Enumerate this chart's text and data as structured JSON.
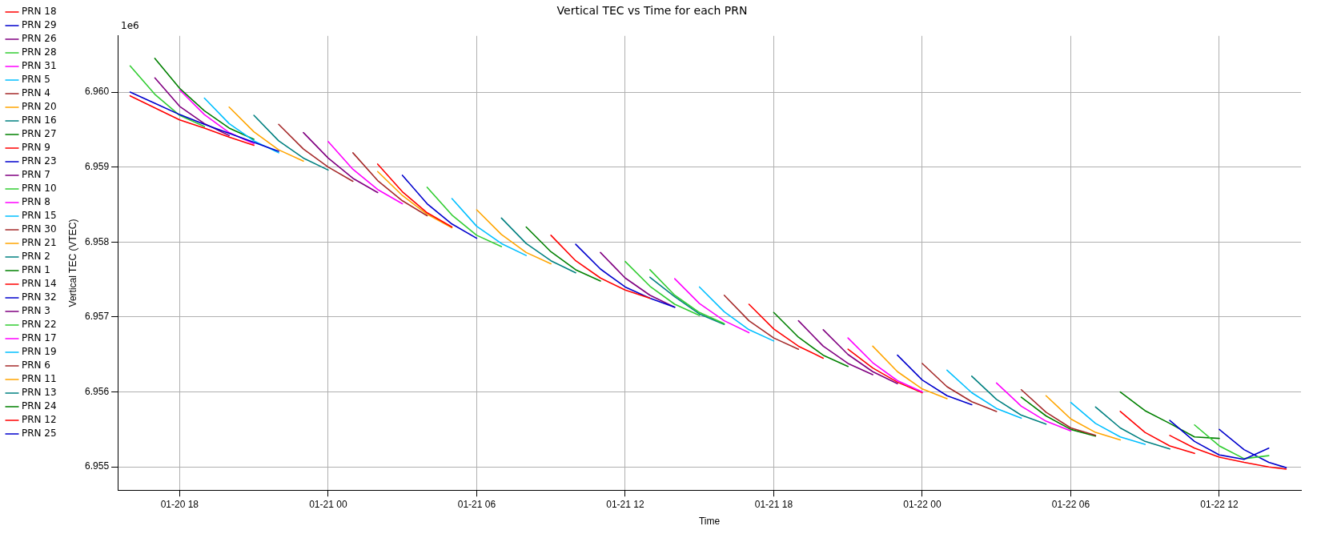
{
  "chart_data": {
    "type": "line",
    "title": "Vertical TEC vs Time for each PRN",
    "xlabel": "Time",
    "ylabel": "Vertical TEC (VTEC)",
    "annotations": [
      "1e6"
    ],
    "xlim": [
      "--01-20T15:30",
      "--01-22T15:18"
    ],
    "xticks": [
      {
        "value": "--01-20T18:00",
        "label": "01-20 18"
      },
      {
        "value": "--01-21T00:00",
        "label": "01-21 00"
      },
      {
        "value": "--01-21T06:00",
        "label": "01-21 06"
      },
      {
        "value": "--01-21T12:00",
        "label": "01-21 12"
      },
      {
        "value": "--01-21T18:00",
        "label": "01-21 18"
      },
      {
        "value": "--01-22T00:00",
        "label": "01-22 00"
      },
      {
        "value": "--01-22T06:00",
        "label": "01-22 06"
      },
      {
        "value": "--01-22T12:00",
        "label": "01-22 12"
      }
    ],
    "ylim": [
      6.95469,
      6.96075
    ],
    "yticks": [
      6.955,
      6.956,
      6.957,
      6.958,
      6.959,
      {
        "value": 6.96,
        "label": "6.960"
      }
    ],
    "grid": true,
    "legend": "top left",
    "marker": "none",
    "line_style": "solid",
    "series": [
      {
        "name": "PRN 18",
        "color": "#ff0000",
        "x": [
          "--01-20T16:00",
          "--01-20T17:00",
          "--01-20T18:00",
          "--01-20T19:00",
          "--01-20T20:00",
          "--01-20T21:00",
          "--01-20T21:30",
          "--01-21T17:00",
          "--01-21T18:00",
          "--01-21T19:00",
          "--01-21T20:00",
          "--01-21T20:30",
          "--01-22T10:00",
          "--01-22T11:00",
          "--01-22T12:00",
          "--01-22T13:00",
          "--01-22T14:00",
          "--01-22T14:42"
        ],
        "values": [
          6.95995,
          6.95979,
          6.95963,
          6.95952,
          6.9594,
          6.95929,
          null,
          6.95717,
          6.95684,
          6.95661,
          6.95645,
          null,
          6.95542,
          6.95525,
          6.95513,
          6.95506,
          6.955,
          6.95497
        ]
      },
      {
        "name": "PRN 29",
        "color": "#0000cd",
        "x": [
          "--01-20T16:00",
          "--01-20T17:00",
          "--01-20T18:00",
          "--01-20T19:00",
          "--01-20T20:00",
          "--01-20T21:00",
          "--01-20T22:00",
          "--01-21T06:00",
          "--01-21T23:00",
          "--01-22T00:00",
          "--01-22T01:00",
          "--01-22T02:00"
        ],
        "values": [
          6.96,
          6.95985,
          6.9597,
          6.95957,
          6.95945,
          6.95933,
          6.95921,
          null,
          6.95649,
          6.95616,
          6.95595,
          6.95583
        ]
      },
      {
        "name": "PRN 26",
        "color": "#800080",
        "x": [
          "--01-20T17:00",
          "--01-20T18:00",
          "--01-20T19:00",
          "--01-20T20:00",
          "--01-21T06:00",
          "--01-21T19:00",
          "--01-21T20:00",
          "--01-21T21:00",
          "--01-21T22:00"
        ],
        "values": [
          6.96019,
          6.95981,
          6.95958,
          6.95942,
          null,
          6.95695,
          6.95661,
          6.95638,
          6.95623
        ]
      },
      {
        "name": "PRN 28",
        "color": "#32cd32",
        "x": [
          "--01-20T16:00",
          "--01-20T17:00",
          "--01-20T18:00",
          "--01-20T19:00",
          "--01-21T06:00",
          "--01-21T13:00",
          "--01-21T14:00",
          "--01-21T15:00",
          "--01-21T16:00"
        ],
        "values": [
          6.96035,
          6.95997,
          6.95969,
          6.95954,
          null,
          6.95763,
          6.95729,
          6.95706,
          6.95691
        ]
      },
      {
        "name": "PRN 31",
        "color": "#ff00ff",
        "x": [
          "--01-20T18:00",
          "--01-20T19:00",
          "--01-20T20:00",
          "--01-20T21:00",
          "--01-21T06:00",
          "--01-21T21:00",
          "--01-21T22:00",
          "--01-21T23:00",
          "--01-22T00:00"
        ],
        "values": [
          6.96003,
          6.9597,
          6.95946,
          6.95931,
          null,
          6.95672,
          6.95639,
          6.95615,
          6.956
        ]
      },
      {
        "name": "PRN 5",
        "color": "#00bfff",
        "x": [
          "--01-20T19:00",
          "--01-20T20:00",
          "--01-20T21:00",
          "--01-20T22:00",
          "--01-21T06:00",
          "--01-22T01:00",
          "--01-22T02:00",
          "--01-22T03:00",
          "--01-22T04:00"
        ],
        "values": [
          6.95992,
          6.95958,
          6.95935,
          6.95919,
          null,
          6.95629,
          6.95599,
          6.95578,
          6.95565
        ]
      },
      {
        "name": "PRN 4",
        "color": "#a52a2a",
        "x": [
          "--01-20T22:00",
          "--01-20T23:00",
          "--01-21T00:00",
          "--01-21T01:00",
          "--01-21T06:00",
          "--01-22T04:00",
          "--01-22T05:00",
          "--01-22T06:00",
          "--01-22T07:00"
        ],
        "values": [
          6.95957,
          6.95924,
          6.959,
          6.95881,
          null,
          6.95603,
          6.95573,
          6.95552,
          6.95542
        ]
      },
      {
        "name": "PRN 20",
        "color": "#ffa500",
        "x": [
          "--01-20T20:00",
          "--01-20T21:00",
          "--01-20T22:00",
          "--01-20T23:00",
          "--01-21T06:00",
          "--01-21T22:00",
          "--01-21T23:00",
          "--01-22T00:00",
          "--01-22T01:00"
        ],
        "values": [
          6.9598,
          6.95947,
          6.95923,
          6.95908,
          null,
          6.95661,
          6.95627,
          6.95604,
          6.95591
        ]
      },
      {
        "name": "PRN 16",
        "color": "#008080",
        "x": [
          "--01-20T21:00",
          "--01-20T22:00",
          "--01-20T23:00",
          "--01-21T00:00",
          "--01-21T06:00",
          "--01-22T02:00",
          "--01-22T03:00",
          "--01-22T04:00",
          "--01-22T05:00"
        ],
        "values": [
          6.95969,
          6.95935,
          6.95912,
          6.95896,
          null,
          6.95621,
          6.9559,
          6.95569,
          6.95557
        ]
      },
      {
        "name": "PRN 27",
        "color": "#008000",
        "x": [
          "--01-20T17:00",
          "--01-20T18:00",
          "--01-20T19:00",
          "--01-20T20:00",
          "--01-20T21:00",
          "--01-21T06:00",
          "--01-21T18:00",
          "--01-21T19:00",
          "--01-21T20:00",
          "--01-21T21:00"
        ],
        "values": [
          6.96045,
          6.96005,
          6.95975,
          6.95952,
          6.95937,
          null,
          6.95706,
          6.95673,
          6.95649,
          6.95634
        ]
      },
      {
        "name": "PRN 9",
        "color": "#ff0000",
        "x": [
          "--01-21T02:00",
          "--01-21T03:00",
          "--01-21T04:00",
          "--01-21T05:00",
          "--01-21T16:00",
          "--01-22T08:00",
          "--01-22T09:00",
          "--01-22T10:00",
          "--01-22T11:00"
        ],
        "values": [
          6.95904,
          6.95867,
          6.95839,
          6.9582,
          null,
          6.95574,
          6.95546,
          6.95528,
          6.95518
        ]
      },
      {
        "name": "PRN 23",
        "color": "#0000cd",
        "x": [
          "--01-21T03:00",
          "--01-21T04:00",
          "--01-21T05:00",
          "--01-21T06:00",
          "--01-21T16:00",
          "--01-22T10:00",
          "--01-22T11:00",
          "--01-22T12:00",
          "--01-22T13:00",
          "--01-22T14:00"
        ],
        "values": [
          6.95889,
          6.95851,
          6.95824,
          6.95805,
          null,
          6.95562,
          6.95534,
          6.95516,
          6.9551,
          6.95525
        ]
      },
      {
        "name": "PRN 7",
        "color": "#800080",
        "x": [
          "--01-20T23:00",
          "--01-21T00:00",
          "--01-21T01:00",
          "--01-21T02:00",
          "--01-21T11:00",
          "--01-21T20:00",
          "--01-21T21:00",
          "--01-21T22:00",
          "--01-21T23:00"
        ],
        "values": [
          6.95946,
          6.95912,
          6.95885,
          6.95866,
          null,
          6.95683,
          6.9565,
          6.95627,
          6.95611
        ]
      },
      {
        "name": "PRN 10",
        "color": "#32cd32",
        "x": [
          "--01-21T04:00",
          "--01-21T05:00",
          "--01-21T06:00",
          "--01-21T07:00",
          "--01-21T16:00",
          "--01-22T11:00",
          "--01-22T12:00",
          "--01-22T13:00",
          "--01-22T14:00"
        ],
        "values": [
          6.95873,
          6.95836,
          6.95809,
          6.95794,
          null,
          6.95556,
          6.95528,
          6.95511,
          6.95515
        ]
      },
      {
        "name": "PRN 8",
        "color": "#ff00ff",
        "x": [
          "--01-21T00:00",
          "--01-21T01:00",
          "--01-21T02:00",
          "--01-21T03:00",
          "--01-21T16:00",
          "--01-22T03:00",
          "--01-22T04:00",
          "--01-22T05:00",
          "--01-22T06:00"
        ],
        "values": [
          6.95934,
          6.95897,
          6.9587,
          6.95851,
          null,
          6.95612,
          6.95581,
          6.95561,
          6.95548
        ]
      },
      {
        "name": "PRN 15",
        "color": "#00bfff",
        "x": [
          "--01-21T05:00",
          "--01-21T06:00",
          "--01-21T07:00",
          "--01-21T08:00",
          "--01-21T16:00",
          "--01-22T06:00",
          "--01-22T07:00",
          "--01-22T08:00",
          "--01-22T09:00"
        ],
        "values": [
          6.95858,
          6.95821,
          6.95798,
          6.95782,
          null,
          6.95586,
          6.95558,
          6.9554,
          6.9553
        ]
      },
      {
        "name": "PRN 30",
        "color": "#a52a2a",
        "x": [
          "--01-21T01:00",
          "--01-21T02:00",
          "--01-21T03:00",
          "--01-21T04:00",
          "--01-21T16:00",
          "--01-22T00:00",
          "--01-22T01:00",
          "--01-22T02:00",
          "--01-22T03:00"
        ],
        "values": [
          6.95919,
          6.95882,
          6.95855,
          6.95835,
          null,
          6.95638,
          6.95607,
          6.95587,
          6.95574
        ]
      },
      {
        "name": "PRN 21",
        "color": "#ffa500",
        "x": [
          "--01-21T06:00",
          "--01-21T07:00",
          "--01-21T08:00",
          "--01-21T09:00",
          "--01-21T21:00",
          "--01-22T05:00",
          "--01-22T06:00",
          "--01-22T07:00",
          "--01-22T08:00"
        ],
        "values": [
          6.95843,
          6.9581,
          6.95786,
          6.95771,
          null,
          6.95595,
          6.95564,
          6.95546,
          6.95536
        ]
      },
      {
        "name": "PRN 2",
        "color": "#008080",
        "x": [
          "--01-21T07:00",
          "--01-21T08:00",
          "--01-21T09:00",
          "--01-21T10:00",
          "--01-21T21:00",
          "--01-22T07:00",
          "--01-22T08:00",
          "--01-22T09:00",
          "--01-22T10:00"
        ],
        "values": [
          6.95832,
          6.95798,
          6.95775,
          6.95759,
          null,
          6.9558,
          6.95552,
          6.95534,
          6.95524
        ]
      },
      {
        "name": "PRN 1",
        "color": "#008000",
        "x": [
          "--01-21T08:00",
          "--01-21T09:00",
          "--01-21T10:00",
          "--01-21T11:00",
          "--01-21T21:00",
          "--01-22T08:00",
          "--01-22T09:00",
          "--01-22T10:00",
          "--01-22T11:00",
          "--01-22T12:00"
        ],
        "values": [
          6.9582,
          6.95787,
          6.95763,
          6.95748,
          null,
          6.956,
          6.95575,
          6.95558,
          6.9554,
          6.95538
        ]
      },
      {
        "name": "PRN 14",
        "color": "#ff0000",
        "x": [
          "--01-21T09:00",
          "--01-21T10:00",
          "--01-21T11:00",
          "--01-21T12:00",
          "--01-21T13:00"
        ],
        "values": [
          6.95809,
          6.95775,
          6.95752,
          6.95736,
          6.95725
        ]
      },
      {
        "name": "PRN 32",
        "color": "#0000cd",
        "x": [
          "--01-21T10:00",
          "--01-21T11:00",
          "--01-21T12:00",
          "--01-21T13:00",
          "--01-21T14:00"
        ],
        "values": [
          6.95797,
          6.95764,
          6.9574,
          6.95725,
          6.95713
        ]
      },
      {
        "name": "PRN 3",
        "color": "#800080",
        "x": [
          "--01-21T11:00",
          "--01-21T12:00",
          "--01-21T13:00",
          "--01-21T14:00"
        ],
        "values": [
          6.95786,
          6.95752,
          6.95729,
          6.95713
        ]
      },
      {
        "name": "PRN 22",
        "color": "#32cd32",
        "x": [
          "--01-21T12:00",
          "--01-21T13:00",
          "--01-21T14:00",
          "--01-21T15:00"
        ],
        "values": [
          6.95774,
          6.95741,
          6.95717,
          6.95702
        ]
      },
      {
        "name": "PRN 17",
        "color": "#ff00ff",
        "x": [
          "--01-21T14:00",
          "--01-21T15:00",
          "--01-21T16:00",
          "--01-21T17:00"
        ],
        "values": [
          6.95751,
          6.95718,
          6.95695,
          6.95679
        ]
      },
      {
        "name": "PRN 19",
        "color": "#00bfff",
        "x": [
          "--01-21T15:00",
          "--01-21T16:00",
          "--01-21T17:00",
          "--01-21T18:00"
        ],
        "values": [
          6.9574,
          6.95707,
          6.95683,
          6.95668
        ]
      },
      {
        "name": "PRN 6",
        "color": "#a52a2a",
        "x": [
          "--01-21T16:00",
          "--01-21T17:00",
          "--01-21T18:00",
          "--01-21T19:00"
        ],
        "values": [
          6.95729,
          6.95695,
          6.95672,
          6.95657
        ]
      },
      {
        "name": "PRN 11",
        "color": "#ffa500",
        "x": [
          "--01-21T02:00",
          "--01-21T03:00",
          "--01-21T04:00",
          "--01-21T05:00"
        ],
        "values": [
          6.95894,
          6.95862,
          6.95837,
          6.95819
        ]
      },
      {
        "name": "PRN 13",
        "color": "#008080",
        "x": [
          "--01-21T13:00",
          "--01-21T14:00",
          "--01-21T15:00",
          "--01-21T16:00"
        ],
        "values": [
          6.95753,
          6.95727,
          6.95704,
          6.9569
        ]
      },
      {
        "name": "PRN 24",
        "color": "#008000",
        "x": [
          "--01-22T04:00",
          "--01-22T05:00",
          "--01-22T06:00",
          "--01-22T07:00"
        ],
        "values": [
          6.95593,
          6.95568,
          6.9555,
          6.95541
        ]
      },
      {
        "name": "PRN 12",
        "color": "#ff0000",
        "x": [
          "--01-21T21:00",
          "--01-21T22:00",
          "--01-21T23:00",
          "--01-22T00:00"
        ],
        "values": [
          6.95657,
          6.95632,
          6.95613,
          6.95599
        ]
      },
      {
        "name": "PRN 25",
        "color": "#0000cd",
        "x": [
          "--01-22T12:00",
          "--01-22T13:00",
          "--01-22T14:00",
          "--01-22T14:42"
        ],
        "values": [
          6.9555,
          6.95523,
          6.95506,
          6.95499
        ]
      }
    ]
  }
}
